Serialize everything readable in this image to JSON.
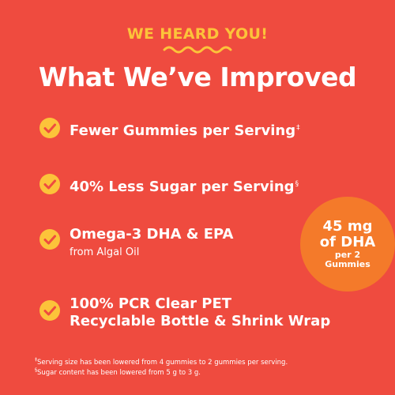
{
  "header": {
    "eyebrow": "WE HEARD YOU!",
    "title": "What We’ve Improved"
  },
  "items": [
    {
      "icon": "check-icon",
      "label": "Fewer Gummies per Serving",
      "mark": "‡"
    },
    {
      "icon": "check-icon",
      "label": "40% Less Sugar per Serving",
      "mark": "§"
    },
    {
      "icon": "check-icon",
      "label": "Omega-3 DHA & EPA",
      "sub": "from Algal Oil"
    },
    {
      "icon": "check-icon",
      "label": "100% PCR Clear PET",
      "label2": "Recyclable Bottle & Shrink Wrap"
    }
  ],
  "badge": {
    "line1": "45 mg",
    "line2": "of DHA",
    "line3": "per 2",
    "line4": "Gummies"
  },
  "footnotes": [
    {
      "mark": "‡",
      "text": "Serving size has been lowered from 4 gummies to 2 gummies per serving."
    },
    {
      "mark": "§",
      "text": "Sugar content has been lowered from 5 g to 3 g."
    }
  ],
  "colors": {
    "background": "#ef4b3f",
    "accent_yellow": "#fcc33a",
    "badge_orange": "#f47a2a",
    "text": "#ffffff"
  }
}
